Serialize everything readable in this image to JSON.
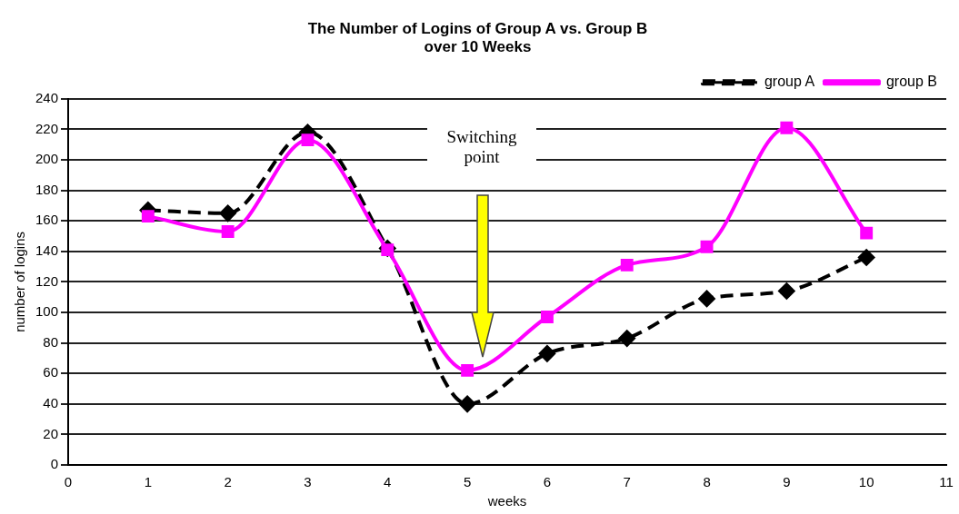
{
  "chart_data": {
    "type": "line",
    "title": "The Number of Logins of Group A vs. Group B\nover 10 Weeks",
    "xlabel": "weeks",
    "ylabel": "number of logins",
    "x": [
      1,
      2,
      3,
      4,
      5,
      6,
      7,
      8,
      9,
      10
    ],
    "series": [
      {
        "name": "group A",
        "color": "#000000",
        "values": [
          167,
          165,
          218,
          142,
          40,
          73,
          83,
          109,
          114,
          136
        ],
        "marker": "diamond",
        "line_style": "dashed"
      },
      {
        "name": "group B",
        "color": "#ff00ff",
        "values": [
          163,
          153,
          213,
          141,
          62,
          97,
          131,
          143,
          221,
          152
        ],
        "marker": "square",
        "line_style": "solid"
      }
    ],
    "xlim": [
      0,
      11
    ],
    "xticks": [
      0,
      1,
      2,
      3,
      4,
      5,
      6,
      7,
      8,
      9,
      10,
      11
    ],
    "ylim": [
      0,
      240
    ],
    "yticks": [
      0,
      20,
      40,
      60,
      80,
      100,
      120,
      140,
      160,
      180,
      200,
      220,
      240
    ],
    "grid": "y",
    "legend": "top right",
    "annotations": [
      "Switching point"
    ]
  }
}
